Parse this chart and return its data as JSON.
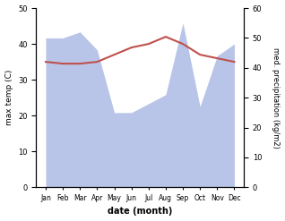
{
  "months": [
    "Jan",
    "Feb",
    "Mar",
    "Apr",
    "May",
    "Jun",
    "Jul",
    "Aug",
    "Sep",
    "Oct",
    "Nov",
    "Dec"
  ],
  "max_temp": [
    35.0,
    34.5,
    34.5,
    35.0,
    37.0,
    39.0,
    40.0,
    42.0,
    40.0,
    37.0,
    36.0,
    35.0
  ],
  "precipitation": [
    50,
    50,
    52,
    46,
    25,
    25,
    28,
    31,
    55,
    27,
    44,
    48
  ],
  "temp_color": "#c0504d",
  "precip_fill_color": "#b8c4e8",
  "xlabel": "date (month)",
  "ylabel_left": "max temp (C)",
  "ylabel_right": "med. precipitation (kg/m2)",
  "ylim_left": [
    0,
    50
  ],
  "ylim_right": [
    0,
    60
  ],
  "yticks_left": [
    0,
    10,
    20,
    30,
    40,
    50
  ],
  "yticks_right": [
    0,
    10,
    20,
    30,
    40,
    50,
    60
  ],
  "bg_color": "#ffffff",
  "fig_width": 3.18,
  "fig_height": 2.47,
  "dpi": 100
}
